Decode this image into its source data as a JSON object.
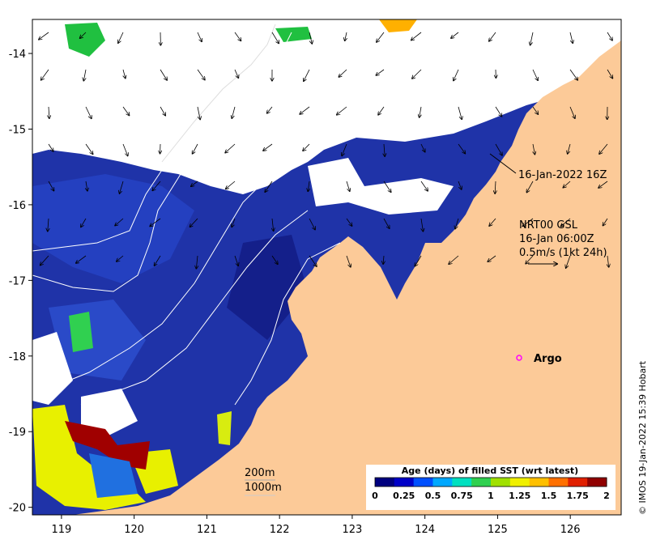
{
  "map": {
    "lon_ticks": [
      "119",
      "120",
      "121",
      "122",
      "123",
      "124",
      "125",
      "126"
    ],
    "lat_ticks": [
      "-14",
      "-15",
      "-16",
      "-17",
      "-18",
      "-19",
      "-20"
    ],
    "lon_range": [
      118.6,
      126.7
    ],
    "lat_range": [
      -20.1,
      -13.55
    ],
    "colors": {
      "land": "#fcca98",
      "cloud": "#ffffff",
      "sst_deep": "#1a2a9e",
      "sst_mid": "#223cb8"
    }
  },
  "annotations": {
    "track_label": "16-Jan-2022 16Z",
    "current_source": "NRT00 GSL",
    "current_time": "16-Jan 06:00Z",
    "current_scale": "0.5m/s (1kt 24h)",
    "argo_label": "Argo",
    "contour_200": "200m",
    "contour_1000": "1000m",
    "credit": "© IMOS 19-Jan-2022 15:39 Hobart"
  },
  "colorbar": {
    "title": "Age (days) of filled SST (wrt latest)",
    "ticks": [
      "0",
      "0.25",
      "0.5",
      "0.75",
      "1",
      "1.25",
      "1.5",
      "1.75",
      "2"
    ],
    "colors": [
      "#00007f",
      "#0000c8",
      "#0050ff",
      "#00a8ff",
      "#00e0c0",
      "#30d050",
      "#a0e000",
      "#f0f000",
      "#ffc000",
      "#ff7000",
      "#e02000",
      "#900000"
    ]
  }
}
